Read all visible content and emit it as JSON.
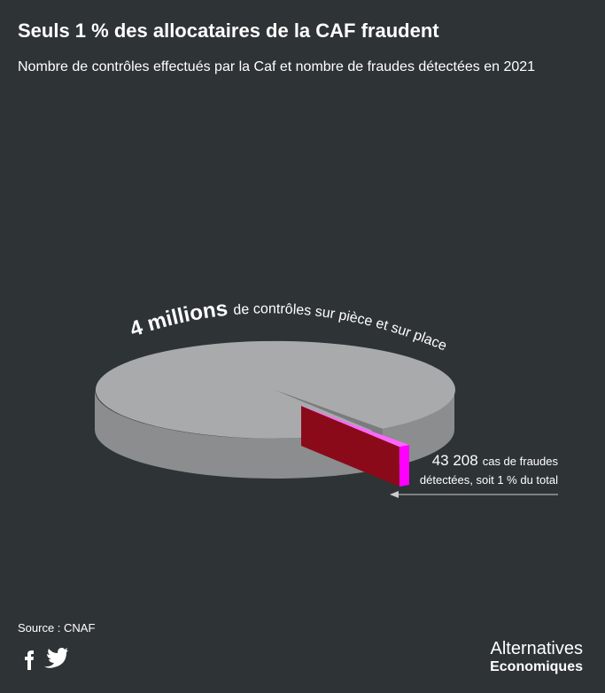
{
  "chart_data": {
    "type": "pie",
    "title": "Seuls 1 % des allocataires de la CAF fraudent",
    "subtitle": "Nombre de contrôles effectués par la Caf et nombre de fraudes détectées en 2021",
    "values": [
      4000000,
      43208
    ],
    "value_labels": [
      "4 millions",
      "43 208"
    ],
    "colors": [
      "#a8aaab",
      "#ff00ff"
    ],
    "slice_texts": [
      "de contrôles sur pièce et sur place",
      "cas de fraudes"
    ],
    "annotation": "détectées, soit 1 % du total",
    "source": "Source : CNAF"
  },
  "brand": [
    "Alternatives",
    "Economiques"
  ]
}
